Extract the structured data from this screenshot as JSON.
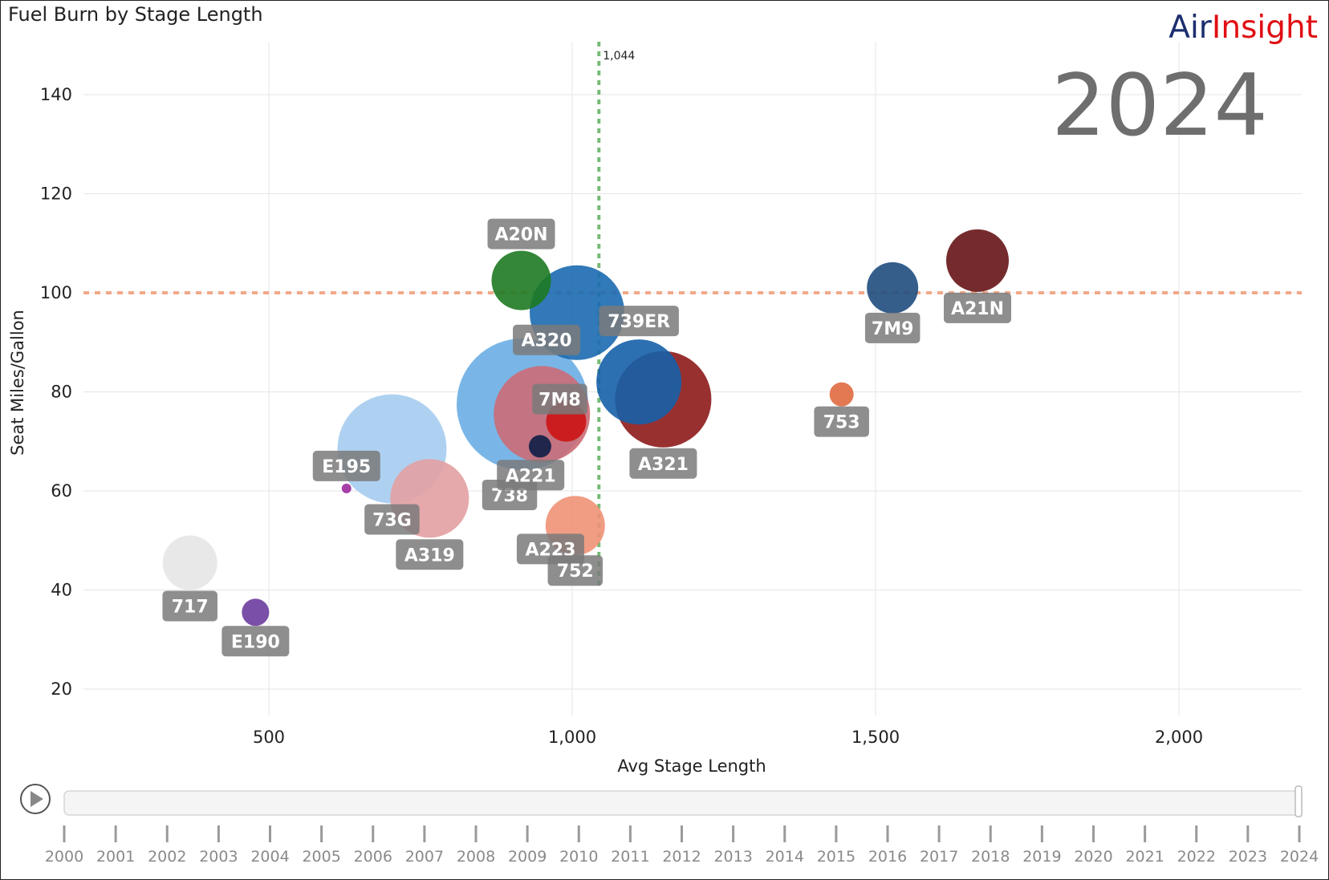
{
  "header": {
    "title": "Fuel Burn by Stage Length",
    "brand_air": "Air",
    "brand_insight": "Insight"
  },
  "current_year": "2024",
  "chart_data": {
    "type": "scatter",
    "title": "Fuel Burn by Stage Length",
    "xlabel": "Avg Stage Length",
    "ylabel": "Seat Miles/Gallon",
    "xlim": [
      200,
      2200
    ],
    "ylim": [
      13,
      150
    ],
    "x_ticks": [
      500,
      1000,
      1500,
      2000
    ],
    "x_tick_labels": [
      "500",
      "1,000",
      "1,500",
      "2,000"
    ],
    "y_ticks": [
      20,
      40,
      60,
      80,
      100,
      120,
      140
    ],
    "y_tick_labels": [
      "20",
      "40",
      "60",
      "80",
      "100",
      "120",
      "140"
    ],
    "grid": true,
    "reference_lines": [
      {
        "axis": "x",
        "value": 1044,
        "label": "1,044",
        "color": "#77bb77"
      },
      {
        "axis": "y",
        "value": 100,
        "color": "#f2a98a"
      }
    ],
    "points": [
      {
        "label": "717",
        "x": 370,
        "y": 45.5,
        "size": 34,
        "color": "#e6e6e6"
      },
      {
        "label": "E190",
        "x": 478,
        "y": 35.5,
        "size": 17,
        "color": "#6b3c9e"
      },
      {
        "label": "E195",
        "x": 628,
        "y": 60.5,
        "size": 6,
        "color": "#9c2a9c"
      },
      {
        "label": "73G",
        "x": 703,
        "y": 68.5,
        "size": 68,
        "color": "#a6ccef"
      },
      {
        "label": "A319",
        "x": 765,
        "y": 58.5,
        "size": 49,
        "color": "#e3a0a2"
      },
      {
        "label": "738",
        "x": 918,
        "y": 77.5,
        "size": 82,
        "color": "#6aaee4"
      },
      {
        "label": "A221",
        "x": 950,
        "y": 75.5,
        "size": 60,
        "color": "#cb6b75"
      },
      {
        "label": "A223",
        "x": 947,
        "y": 69,
        "size": 14,
        "color": "#0e1e46"
      },
      {
        "label": "A20N",
        "x": 916,
        "y": 102.5,
        "size": 37,
        "color": "#1e7a22"
      },
      {
        "label": "A320",
        "x": 1008,
        "y": 96,
        "size": 59,
        "color": "#1b6ab0"
      },
      {
        "label": "7M8",
        "x": 990,
        "y": 74,
        "size": 25,
        "color": "#cc1414"
      },
      {
        "label": "752",
        "x": 1005,
        "y": 53,
        "size": 37,
        "color": "#ee9275"
      },
      {
        "label": "739ER",
        "x": 1110,
        "y": 82,
        "size": 53,
        "color": "#1661a8"
      },
      {
        "label": "A321",
        "x": 1150,
        "y": 78.5,
        "size": 60,
        "color": "#8e1a1a"
      },
      {
        "label": "753",
        "x": 1444,
        "y": 79.5,
        "size": 15,
        "color": "#e06a40"
      },
      {
        "label": "7M9",
        "x": 1528,
        "y": 101,
        "size": 32,
        "color": "#1f4d7e"
      },
      {
        "label": "A21N",
        "x": 1668,
        "y": 106.5,
        "size": 39,
        "color": "#661416"
      }
    ]
  },
  "timeline": {
    "years": [
      "2000",
      "2001",
      "2002",
      "2003",
      "2004",
      "2005",
      "2006",
      "2007",
      "2008",
      "2009",
      "2010",
      "2011",
      "2012",
      "2013",
      "2014",
      "2015",
      "2016",
      "2017",
      "2018",
      "2019",
      "2020",
      "2021",
      "2022",
      "2023",
      "2024"
    ],
    "selected": "2024"
  }
}
